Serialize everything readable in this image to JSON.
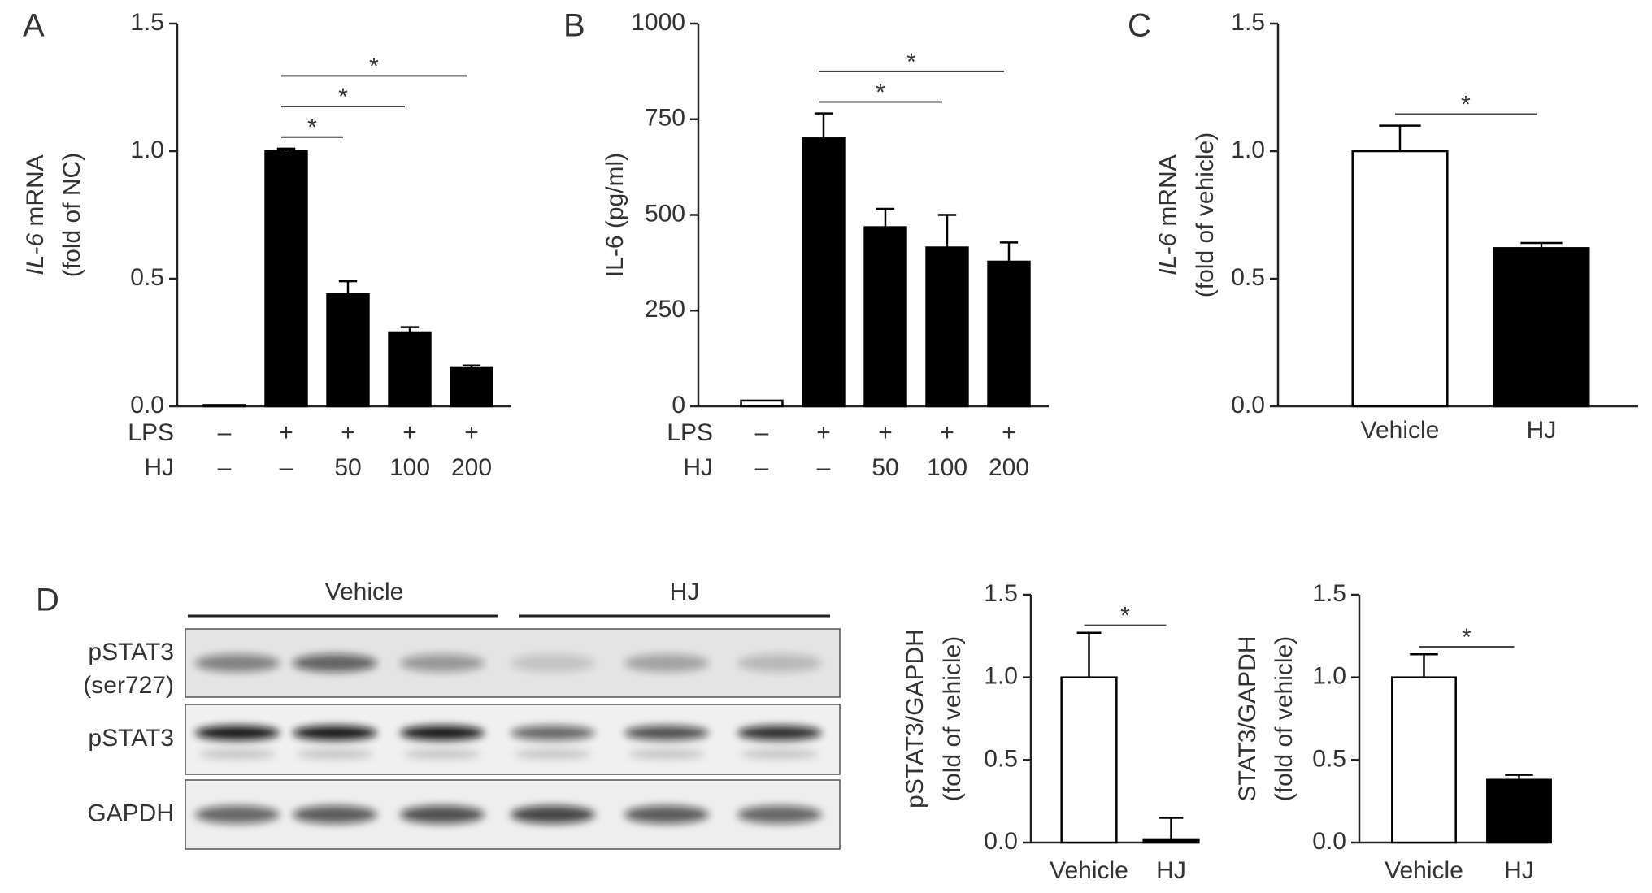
{
  "chart_data": [
    {
      "type": "bar",
      "letter": "A",
      "ylabel": [
        [
          {
            "text": "IL-6",
            "italic": true
          },
          {
            "text": " mRNA"
          }
        ],
        [
          {
            "text": "(fold of NC)"
          }
        ]
      ],
      "rows": [
        {
          "name": "LPS",
          "labels": [
            "–",
            "+",
            "+",
            "+",
            "+"
          ]
        },
        {
          "name": "HJ",
          "labels": [
            "–",
            "–",
            "50",
            "100",
            "200"
          ]
        }
      ],
      "values": [
        0.005,
        1.0,
        0.44,
        0.29,
        0.15
      ],
      "errors": [
        0,
        0.01,
        0.05,
        0.02,
        0.01
      ],
      "colors": [
        "#ffffff",
        "#000000",
        "#000000",
        "#000000",
        "#000000"
      ],
      "ylim": [
        0,
        1.5
      ],
      "yticks": [
        {
          "value": 0,
          "label": "0.0"
        },
        0.5,
        {
          "value": 1,
          "label": "1.0"
        },
        1.5
      ],
      "significance": [
        {
          "pair": [
            1,
            2
          ],
          "label": "*"
        },
        {
          "pair": [
            1,
            3
          ],
          "label": "*"
        },
        {
          "pair": [
            1,
            4
          ],
          "label": "*"
        }
      ]
    },
    {
      "type": "bar",
      "letter": "B",
      "ylabel": [
        [
          {
            "text": "IL-6 (pg/ml)"
          }
        ]
      ],
      "rows": [
        {
          "name": "LPS",
          "labels": [
            "–",
            "+",
            "+",
            "+",
            "+"
          ]
        },
        {
          "name": "HJ",
          "labels": [
            "–",
            "–",
            "50",
            "100",
            "200"
          ]
        }
      ],
      "values": [
        15,
        700,
        468,
        415,
        378
      ],
      "errors": [
        0,
        65,
        48,
        85,
        50
      ],
      "colors": [
        "#ffffff",
        "#000000",
        "#000000",
        "#000000",
        "#000000"
      ],
      "ylim": [
        0,
        1000
      ],
      "yticks": [
        0,
        250,
        500,
        750,
        1000
      ],
      "significance": [
        {
          "pair": [
            1,
            3
          ],
          "label": "*"
        },
        {
          "pair": [
            1,
            4
          ],
          "label": "*"
        }
      ]
    },
    {
      "type": "bar",
      "letter": "C",
      "ylabel": [
        [
          {
            "text": "IL-6",
            "italic": true
          },
          {
            "text": " mRNA"
          }
        ],
        [
          {
            "text": "(fold of vehicle)"
          }
        ]
      ],
      "categories": [
        "Vehicle",
        "HJ"
      ],
      "values": [
        1.0,
        0.62
      ],
      "errors": [
        0.1,
        0.02
      ],
      "colors": [
        "#ffffff",
        "#000000"
      ],
      "ylim": [
        0,
        1.5
      ],
      "yticks": [
        {
          "value": 0,
          "label": "0.0"
        },
        0.5,
        {
          "value": 1,
          "label": "1.0"
        },
        1.5
      ],
      "significance": [
        {
          "pair": [
            0,
            1
          ],
          "label": "*"
        }
      ]
    },
    {
      "type": "bar",
      "ylabel": [
        [
          {
            "text": "pSTAT3/GAPDH"
          }
        ],
        [
          {
            "text": "(fold of vehicle)"
          }
        ]
      ],
      "categories": [
        "Vehicle",
        "HJ"
      ],
      "values": [
        1.0,
        0.02
      ],
      "errors": [
        0.27,
        0.13
      ],
      "colors": [
        "#ffffff",
        "#000000"
      ],
      "ylim": [
        0,
        1.5
      ],
      "yticks": [
        {
          "value": 0,
          "label": "0.0"
        },
        0.5,
        {
          "value": 1,
          "label": "1.0"
        },
        1.5
      ],
      "significance": [
        {
          "pair": [
            0,
            1
          ],
          "label": "*"
        }
      ]
    },
    {
      "type": "bar",
      "ylabel": [
        [
          {
            "text": "STAT3/GAPDH"
          }
        ],
        [
          {
            "text": "(fold of vehicle)"
          }
        ]
      ],
      "categories": [
        "Vehicle",
        "HJ"
      ],
      "values": [
        1.0,
        0.38
      ],
      "errors": [
        0.14,
        0.03
      ],
      "colors": [
        "#ffffff",
        "#000000"
      ],
      "ylim": [
        0,
        1.5
      ],
      "yticks": [
        {
          "value": 0,
          "label": "0.0"
        },
        0.5,
        {
          "value": 1,
          "label": "1.0"
        },
        1.5
      ],
      "significance": [
        {
          "pair": [
            0,
            1
          ],
          "label": "*"
        }
      ]
    }
  ],
  "blot": {
    "letter": "D",
    "groups": [
      "Vehicle",
      "HJ"
    ],
    "rows": [
      [
        "pSTAT3",
        "(ser727)"
      ],
      [
        "pSTAT3"
      ],
      [
        "GAPDH"
      ]
    ]
  }
}
